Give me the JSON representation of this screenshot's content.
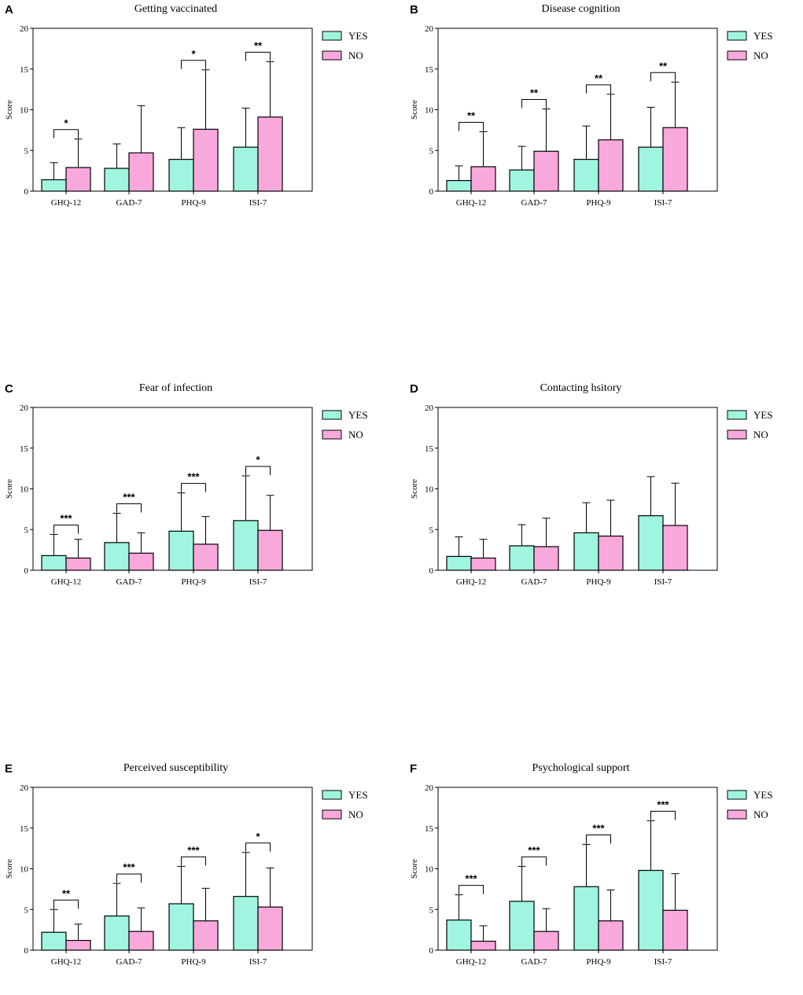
{
  "figure": {
    "colors": {
      "yes": "#9ff5df",
      "no": "#f9a8dc",
      "stroke": "#000000"
    }
  },
  "chart_data": [
    {
      "panel": "A",
      "type": "bar",
      "title": "Getting vaccinated",
      "xlabel": "",
      "ylabel": "Score",
      "ylim": [
        0,
        20
      ],
      "yticks": [
        "0",
        "5",
        "10",
        "15",
        "20"
      ],
      "categories": [
        "GHQ-12",
        "GAD-7",
        "PHQ-9",
        "ISI-7"
      ],
      "legend": [
        "YES",
        "NO"
      ],
      "series": [
        {
          "name": "YES",
          "values": [
            1.4,
            2.8,
            3.9,
            5.4
          ],
          "errors": [
            2.1,
            3.0,
            3.9,
            4.8
          ]
        },
        {
          "name": "NO",
          "values": [
            2.9,
            4.7,
            7.6,
            9.1
          ],
          "errors": [
            3.5,
            5.8,
            7.3,
            6.8
          ]
        }
      ],
      "significance": [
        "*",
        "",
        "*",
        "**"
      ]
    },
    {
      "panel": "B",
      "type": "bar",
      "title": "Disease cognition",
      "xlabel": "",
      "ylabel": "Score",
      "ylim": [
        0,
        20
      ],
      "yticks": [
        "0",
        "5",
        "10",
        "15",
        "20"
      ],
      "categories": [
        "GHQ-12",
        "GAD-7",
        "PHQ-9",
        "ISI-7"
      ],
      "legend": [
        "YES",
        "NO"
      ],
      "series": [
        {
          "name": "YES",
          "values": [
            1.3,
            2.6,
            3.9,
            5.4
          ],
          "errors": [
            1.8,
            2.9,
            4.1,
            4.9
          ]
        },
        {
          "name": "NO",
          "values": [
            3.0,
            4.9,
            6.3,
            7.8
          ],
          "errors": [
            4.3,
            5.2,
            5.6,
            5.6
          ]
        }
      ],
      "significance": [
        "**",
        "**",
        "**",
        "**"
      ]
    },
    {
      "panel": "C",
      "type": "bar",
      "title": "Fear of infection",
      "xlabel": "",
      "ylabel": "Score",
      "ylim": [
        0,
        20
      ],
      "yticks": [
        "0",
        "5",
        "10",
        "15",
        "20"
      ],
      "categories": [
        "GHQ-12",
        "GAD-7",
        "PHQ-9",
        "ISI-7"
      ],
      "legend": [
        "YES",
        "NO"
      ],
      "series": [
        {
          "name": "YES",
          "values": [
            1.8,
            3.4,
            4.8,
            6.1
          ],
          "errors": [
            2.6,
            3.6,
            4.7,
            5.5
          ]
        },
        {
          "name": "NO",
          "values": [
            1.5,
            2.1,
            3.2,
            4.9
          ],
          "errors": [
            2.3,
            2.5,
            3.4,
            4.3
          ]
        }
      ],
      "significance": [
        "***",
        "***",
        "***",
        "*"
      ]
    },
    {
      "panel": "D",
      "type": "bar",
      "title": "Contacting hsitory",
      "xlabel": "",
      "ylabel": "Score",
      "ylim": [
        0,
        20
      ],
      "yticks": [
        "0",
        "5",
        "10",
        "15",
        "20"
      ],
      "categories": [
        "GHQ-12",
        "GAD-7",
        "PHQ-9",
        "ISI-7"
      ],
      "legend": [
        "YES",
        "NO"
      ],
      "series": [
        {
          "name": "YES",
          "values": [
            1.7,
            3.0,
            4.6,
            6.7
          ],
          "errors": [
            2.4,
            2.6,
            3.7,
            4.8
          ]
        },
        {
          "name": "NO",
          "values": [
            1.5,
            2.9,
            4.2,
            5.5
          ],
          "errors": [
            2.3,
            3.5,
            4.4,
            5.2
          ]
        }
      ],
      "significance": [
        "",
        "",
        "",
        ""
      ]
    },
    {
      "panel": "E",
      "type": "bar",
      "title": "Perceived susceptibility",
      "xlabel": "",
      "ylabel": "Score",
      "ylim": [
        0,
        20
      ],
      "yticks": [
        "0",
        "5",
        "10",
        "15",
        "20"
      ],
      "categories": [
        "GHQ-12",
        "GAD-7",
        "PHQ-9",
        "ISI-7"
      ],
      "legend": [
        "YES",
        "NO"
      ],
      "series": [
        {
          "name": "YES",
          "values": [
            2.2,
            4.2,
            5.7,
            6.6
          ],
          "errors": [
            2.8,
            4.0,
            4.6,
            5.4
          ]
        },
        {
          "name": "NO",
          "values": [
            1.2,
            2.3,
            3.6,
            5.3
          ],
          "errors": [
            2.0,
            2.9,
            4.0,
            4.8
          ]
        }
      ],
      "significance": [
        "**",
        "***",
        "***",
        "*"
      ]
    },
    {
      "panel": "F",
      "type": "bar",
      "title": "Psychological support",
      "xlabel": "",
      "ylabel": "Score",
      "ylim": [
        0,
        20
      ],
      "yticks": [
        "0",
        "5",
        "10",
        "15",
        "20"
      ],
      "categories": [
        "GHQ-12",
        "GAD-7",
        "PHQ-9",
        "ISI-7"
      ],
      "legend": [
        "YES",
        "NO"
      ],
      "series": [
        {
          "name": "YES",
          "values": [
            3.7,
            6.0,
            7.8,
            9.8
          ],
          "errors": [
            3.1,
            4.3,
            5.2,
            6.1
          ]
        },
        {
          "name": "NO",
          "values": [
            1.1,
            2.3,
            3.6,
            4.9
          ],
          "errors": [
            1.9,
            2.8,
            3.8,
            4.5
          ]
        }
      ],
      "significance": [
        "***",
        "***",
        "***",
        "***"
      ]
    }
  ]
}
